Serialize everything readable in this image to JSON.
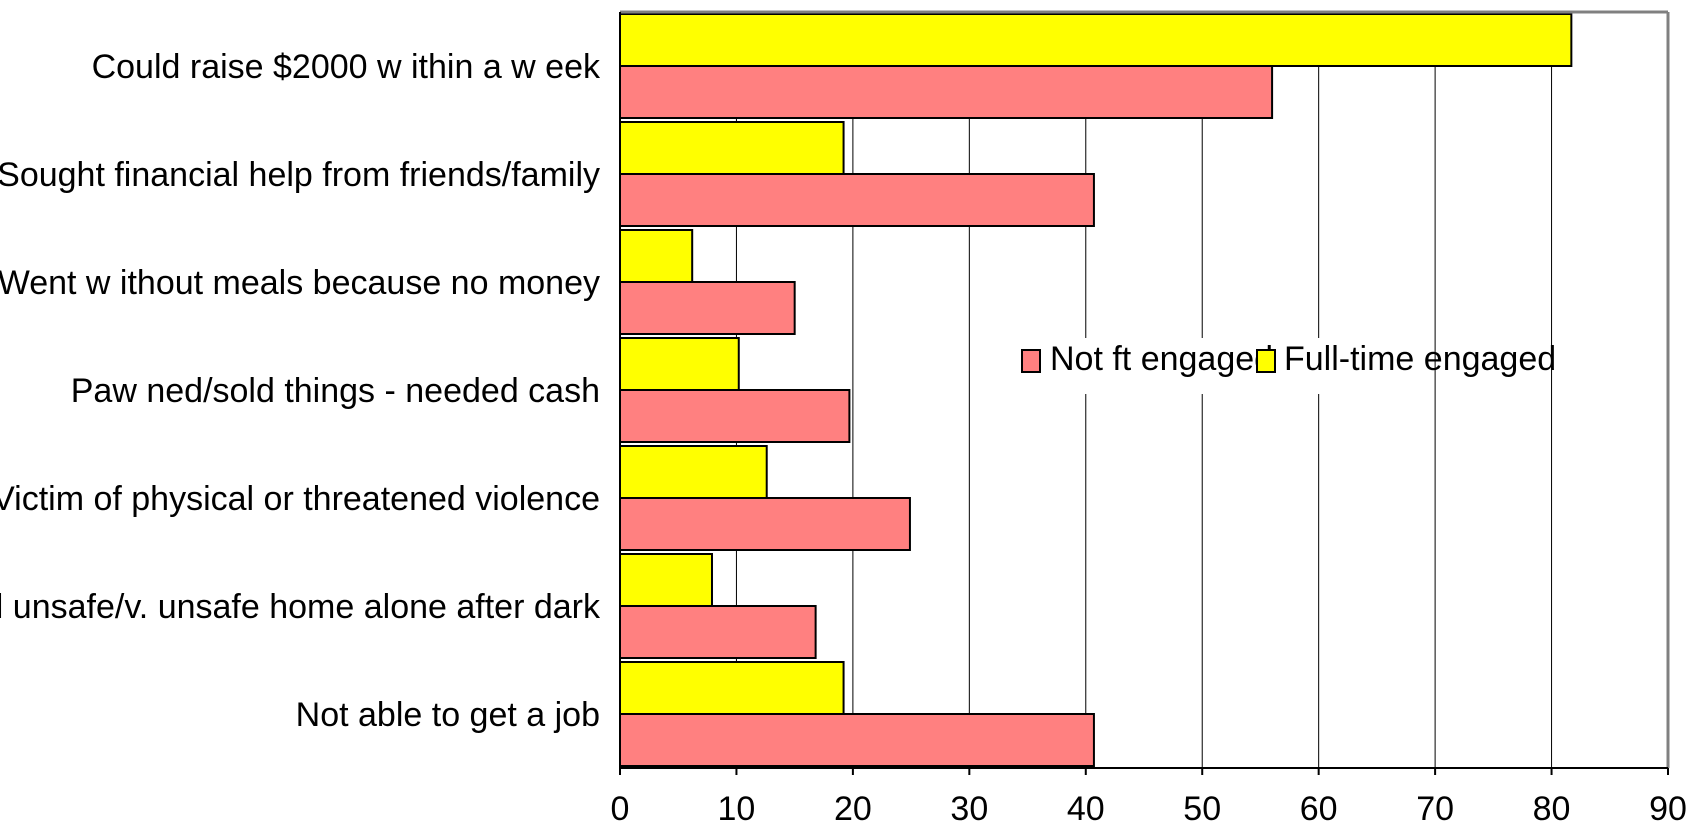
{
  "colors": {
    "not_ft": "#ff8080",
    "full_time": "#ffff00",
    "bar_stroke": "#000000",
    "grid": "#000000",
    "frame": "#808080"
  },
  "chart_data": {
    "type": "bar",
    "orientation": "horizontal",
    "categories": [
      "Could raise $2000 w ithin a w eek",
      "Sought financial help from friends/family",
      "Went w ithout meals because no money",
      "Paw ned/sold things - needed cash",
      "Victim of physical or threatened violence",
      "Feel unsafe/v. unsafe home alone after dark",
      "Not able to get a job"
    ],
    "series": [
      {
        "name": "Not ft engaged",
        "color": "#ff8080",
        "values": [
          56,
          40.7,
          15,
          19.7,
          24.9,
          16.8,
          40.7
        ]
      },
      {
        "name": "Full-time engaged",
        "color": "#ffff00",
        "values": [
          81.7,
          19.2,
          6.2,
          10.2,
          12.6,
          7.9,
          19.2
        ]
      }
    ],
    "xlim": [
      0,
      90
    ],
    "xticks": [
      "0",
      "10",
      "20",
      "30",
      "40",
      "50",
      "60",
      "70",
      "80",
      "90"
    ],
    "grid": "vertical",
    "legend_position": "center-right",
    "legend": [
      {
        "label": "Not ft engaged",
        "color": "#ff8080"
      },
      {
        "label": "Full-time engaged",
        "color": "#ffff00"
      }
    ]
  }
}
